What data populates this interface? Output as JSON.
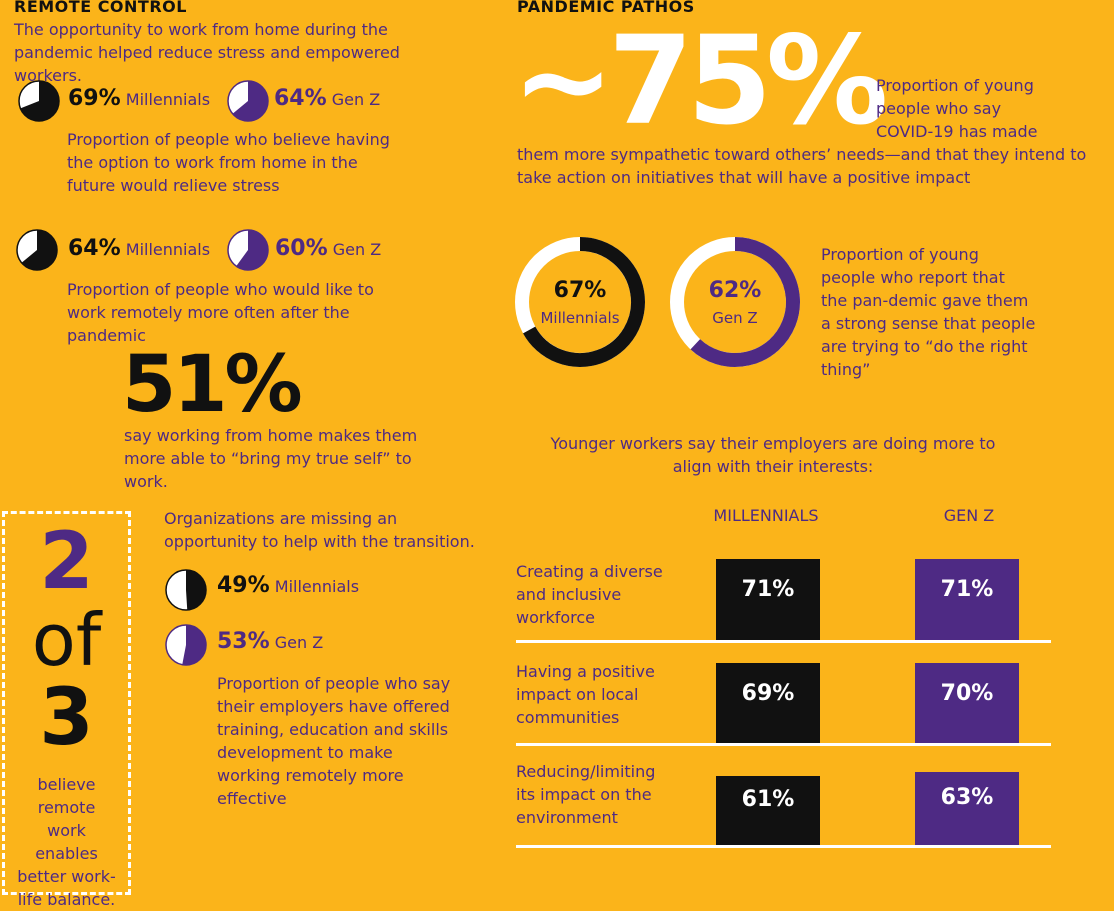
{
  "remote_control": {
    "title": "REMOTE CONTROL",
    "intro": "The opportunity to work from home during the pandemic helped reduce stress and empowered workers.",
    "stats": [
      {
        "items": [
          {
            "value": 69,
            "label": "69%",
            "group": "Millennials"
          },
          {
            "value": 64,
            "label": "64%",
            "group": "Gen Z"
          }
        ],
        "text": "Proportion of people who believe having the option to work from home in the future would relieve stress"
      },
      {
        "items": [
          {
            "value": 64,
            "label": "64%",
            "group": "Millennials"
          },
          {
            "value": 60,
            "label": "60%",
            "group": "Gen Z"
          }
        ],
        "text": "Proportion of people who would like to work remotely more often after the pandemic"
      }
    ],
    "big_stat": {
      "label": "51%",
      "text": "say working from home makes them more able to “bring my true self” to work."
    },
    "two_of_three": {
      "top": "2",
      "middle": "of",
      "bottom": "3",
      "text": "believe remote work enables better work-life balance."
    },
    "organizations": {
      "intro": "Organizations are missing an opportunity to help with the transition.",
      "items": [
        {
          "value": 49,
          "label": "49%",
          "group": "Millennials"
        },
        {
          "value": 53,
          "label": "53%",
          "group": "Gen Z"
        }
      ],
      "text": "Proportion of people who say their employers have offered training, education and skills development to make working remotely more effective"
    }
  },
  "pandemic_pathos": {
    "title": "PANDEMIC PATHOS",
    "big_stat": "~75%",
    "text_lines": [
      "Proportion of young",
      "people who say",
      "COVID-19 has made",
      "them more sympathetic toward others’ needs—and that they intend to",
      "take action on initiatives that will have a positive impact"
    ],
    "donuts": {
      "items": [
        {
          "value": 67,
          "label": "67%",
          "group": "Millennials"
        },
        {
          "value": 62,
          "label": "62%",
          "group": "Gen Z"
        }
      ],
      "text": "Proportion of young people who report that the pan-demic gave them a strong sense that people are trying to “do the right thing”"
    },
    "employers": {
      "intro": "Younger workers say their employers are doing more to align with their interests:",
      "columns": [
        "MILLENNIALS",
        "GEN Z"
      ],
      "rows": [
        {
          "label": "Creating a diverse and inclusive workforce",
          "values": [
            "71%",
            "71%"
          ]
        },
        {
          "label": "Having a positive impact on local communities",
          "values": [
            "69%",
            "70%"
          ]
        },
        {
          "label": "Reducing/limiting its impact on the environment",
          "values": [
            "61%",
            "63%"
          ]
        }
      ]
    }
  }
}
